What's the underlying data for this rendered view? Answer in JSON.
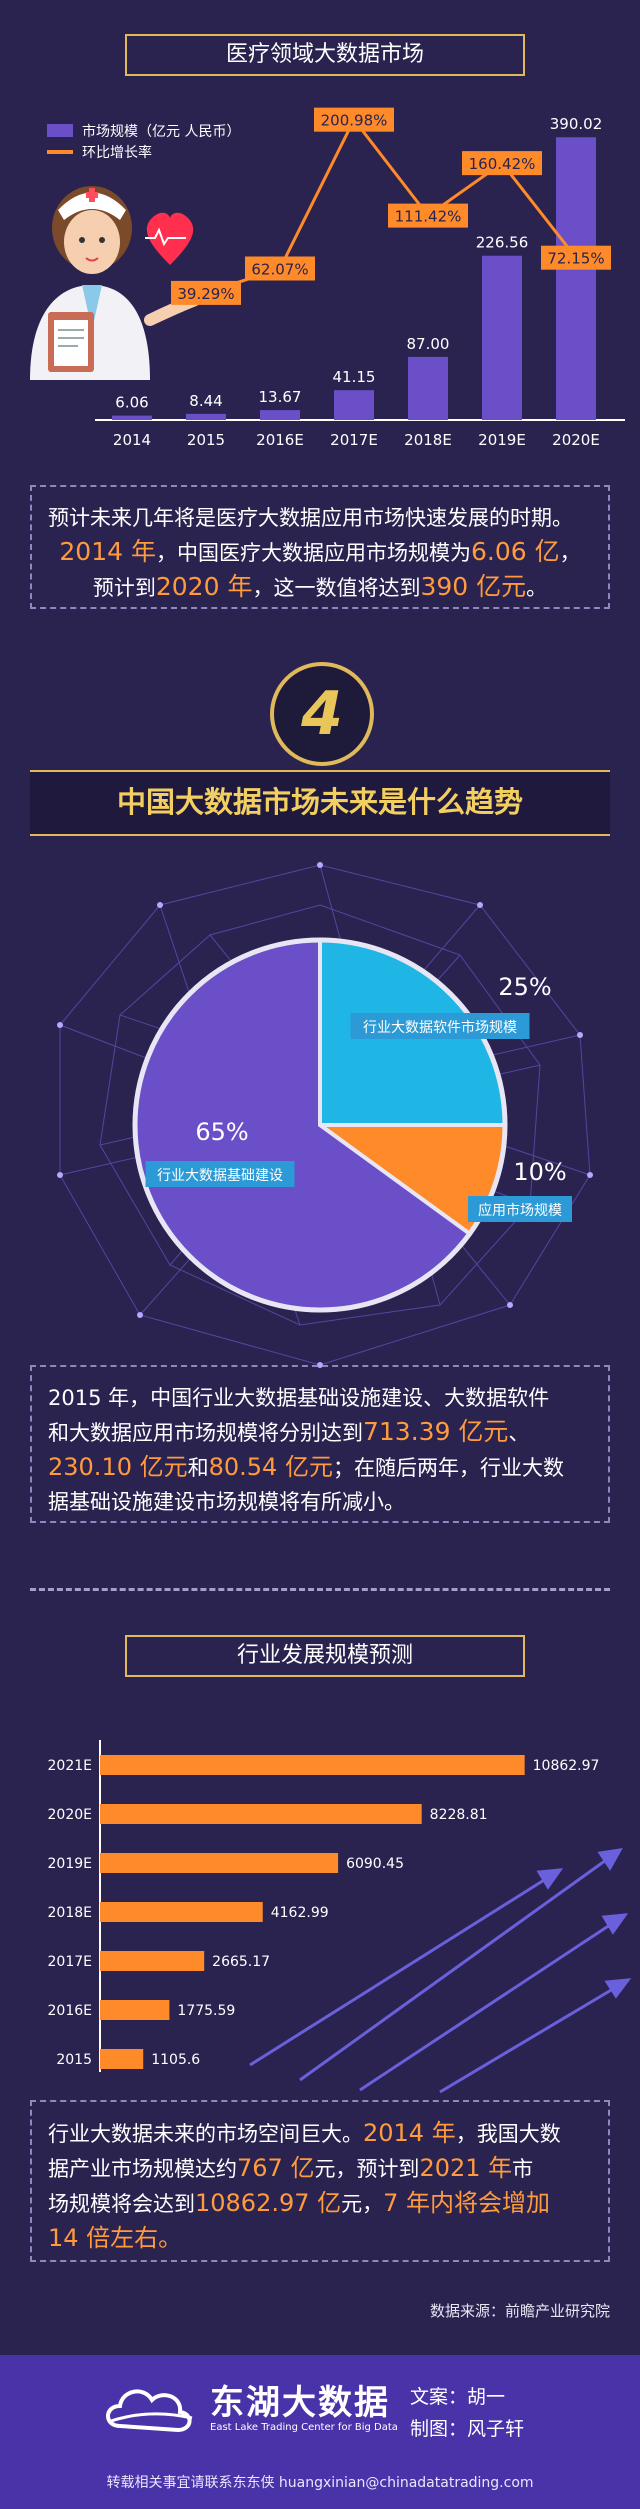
{
  "section1": {
    "title": "医疗领域大数据市场",
    "legend": {
      "bar_label": "市场规模（亿元 人民币）",
      "line_label": "环比增长率"
    }
  },
  "section1_text": {
    "p1": "预计未来几年将是医疗大数据应用市场快速发展的时期。",
    "p2a": "2014 年",
    "p2b": "，中国医疗大数据应用市场规模为",
    "p2c": "6.06 亿",
    "p2d": "，",
    "p3a": "预计到",
    "p3b": "2020 年",
    "p3c": "，这一数值将达到",
    "p3d": "390 亿元",
    "p3e": "。"
  },
  "section2": {
    "number": "4",
    "title": "中国大数据市场未来是什么趋势"
  },
  "section2_text": {
    "l1": "2015 年，中国行业大数据基础设施建设、大数据软件",
    "l2a": "和大数据应用市场规模将分别达到",
    "l2b": "713.39 亿元",
    "l2c": "、",
    "l3a": "230.10 亿元",
    "l3b": "和",
    "l3c": "80.54 亿元",
    "l3d": "；在随后两年，行业大数",
    "l4": "据基础设施建设市场规模将有所减小。"
  },
  "section3": {
    "title": "行业发展规模预测"
  },
  "section3_text": {
    "l1a": "行业大数据未来的市场空间巨大。",
    "l1b": "2014 年",
    "l1c": "，我国大数",
    "l2a": "据产业市场规模达约",
    "l2b": "767 亿",
    "l2c": "元，预计到",
    "l2d": "2021 年",
    "l2e": "市",
    "l3a": "场规模将会达到",
    "l3b": "10862.97 亿",
    "l3c": "元，",
    "l3d": "7 年内将会增加",
    "l4": "14 倍左右。"
  },
  "source": "数据来源：前瞻产业研究院",
  "footer": {
    "brand_cn": "东湖大数据",
    "brand_en": "East Lake Trading Center for Big Data",
    "writer": "文案：胡一",
    "designer": "制图：风子轩",
    "contact": "转载相关事宜请联系东东侠 huangxinian@chinadatatrading.com"
  },
  "colors": {
    "bar": "#6a4fc8",
    "line": "#ff8a2a",
    "pie_blue": "#1fb6e6",
    "pie_orange": "#ff8a2a",
    "pie_purple": "#6a4fc8",
    "gold": "#e0b95a"
  },
  "chart_data": [
    {
      "type": "bar",
      "categories": [
        "2014",
        "2015",
        "2016E",
        "2017E",
        "2018E",
        "2019E",
        "2020E"
      ],
      "series": [
        {
          "name": "市场规模（亿元 人民币）",
          "type": "bar",
          "values": [
            6.06,
            8.44,
            13.67,
            41.15,
            87.0,
            226.56,
            390.02
          ],
          "labels": [
            "6.06",
            "8.44",
            "13.67",
            "41.15",
            "87.00",
            "226.56",
            "390.02"
          ]
        },
        {
          "name": "环比增长率",
          "type": "line",
          "values": [
            null,
            39.29,
            62.07,
            200.98,
            111.42,
            160.42,
            72.15
          ],
          "labels": [
            "",
            "39.29%",
            "62.07%",
            "200.98%",
            "111.42%",
            "160.42%",
            "72.15%"
          ]
        }
      ]
    },
    {
      "type": "pie",
      "slices": [
        {
          "label": "行业大数据软件市场规模",
          "value": 25,
          "pct": "25%"
        },
        {
          "label": "应用市场规模",
          "value": 10,
          "pct": "10%"
        },
        {
          "label": "行业大数据基础建设",
          "value": 65,
          "pct": "65%"
        }
      ]
    },
    {
      "type": "bar",
      "orientation": "horizontal",
      "categories": [
        "2021E",
        "2020E",
        "2019E",
        "2018E",
        "2017E",
        "2016E",
        "2015"
      ],
      "values": [
        10862.97,
        8228.81,
        6090.45,
        4162.99,
        2665.17,
        1775.59,
        1105.6
      ],
      "labels": [
        "10862.97",
        "8228.81",
        "6090.45",
        "4162.99",
        "2665.17",
        "1775.59",
        "1105.6"
      ]
    }
  ]
}
